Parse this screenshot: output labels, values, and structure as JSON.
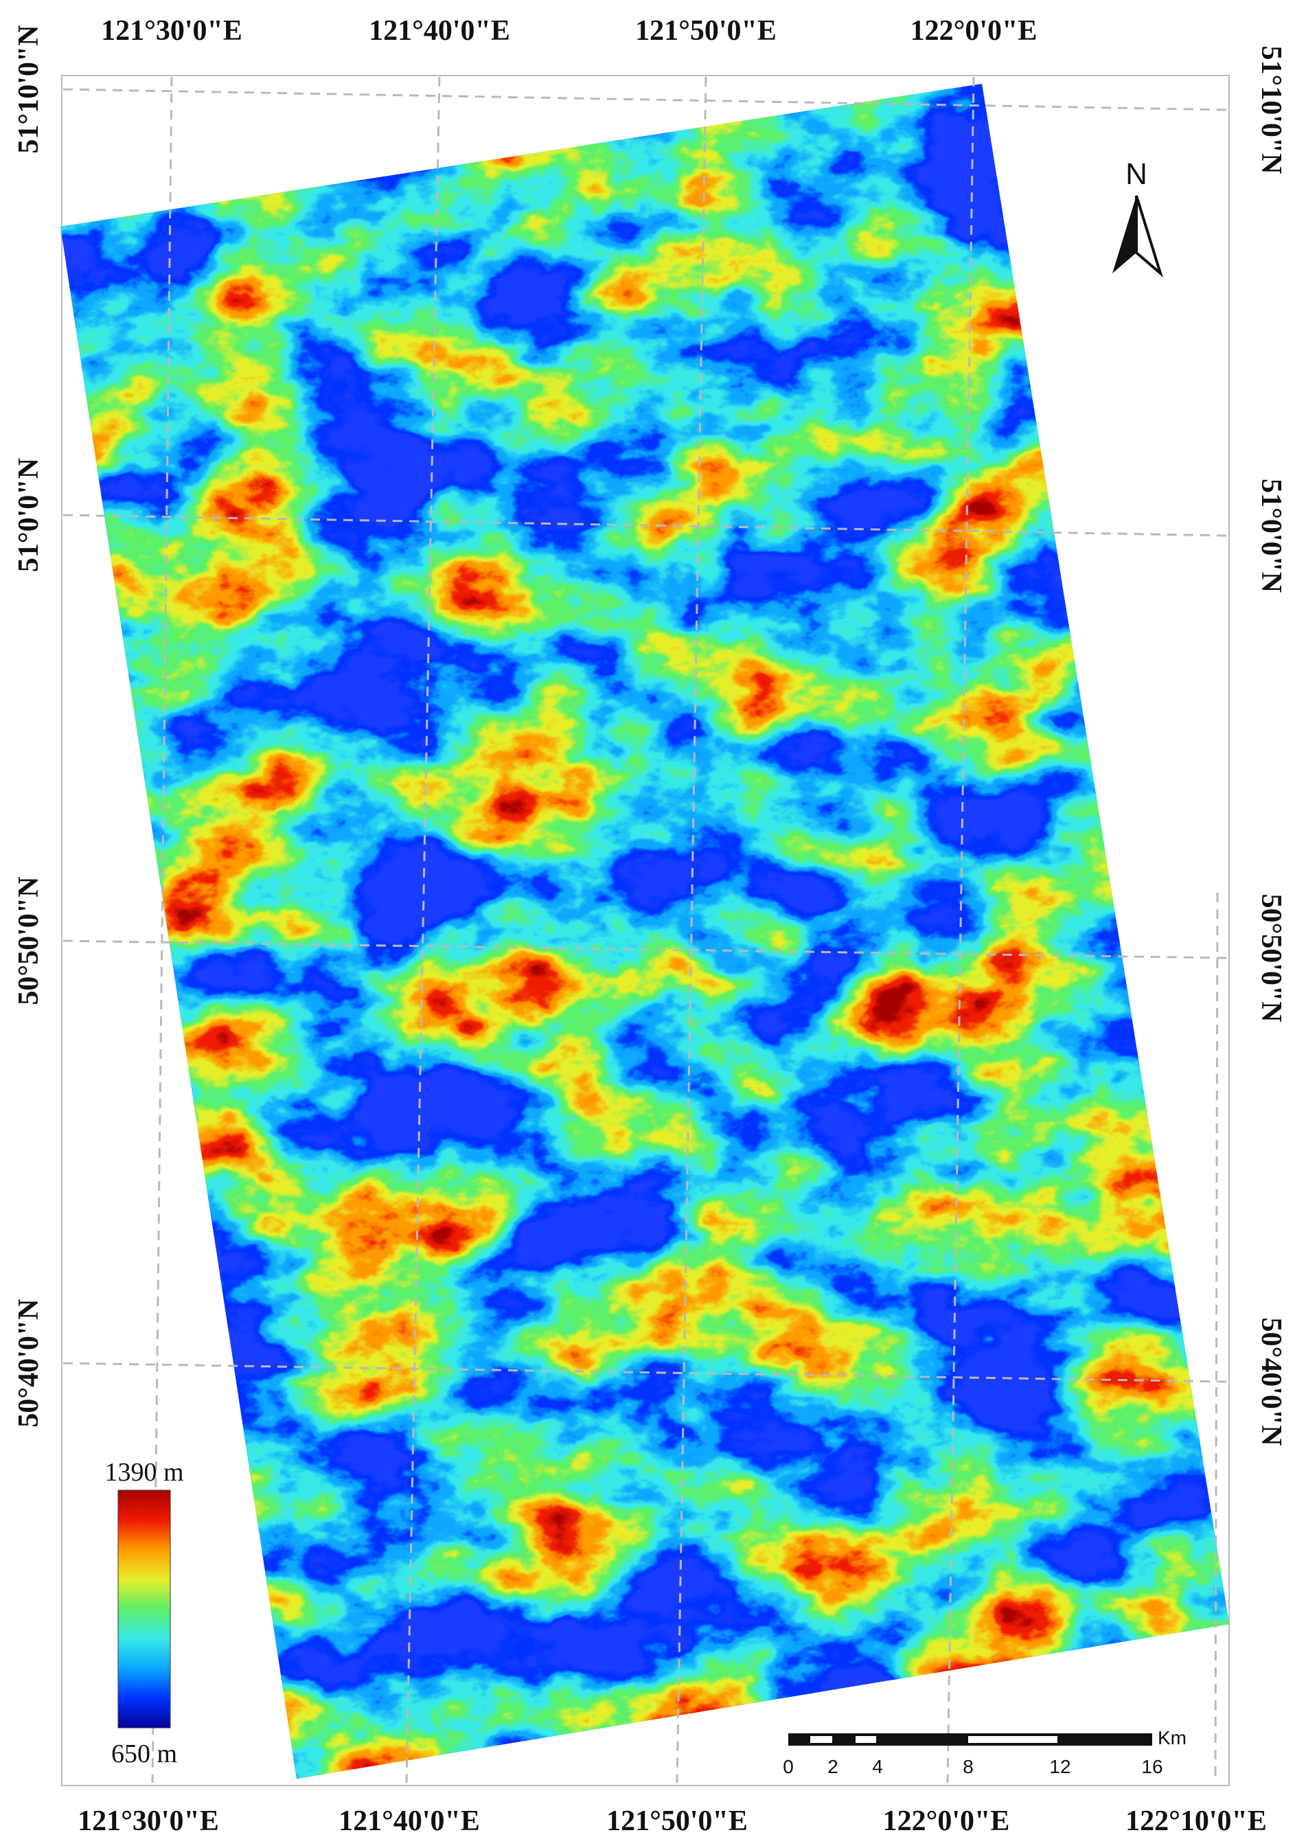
{
  "map": {
    "top_labels": [
      "121°30'0\"E",
      "121°40'0\"E",
      "121°50'0\"E",
      "122°0'0\"E"
    ],
    "bottom_labels": [
      "121°30'0\"E",
      "121°40'0\"E",
      "121°50'0\"E",
      "122°0'0\"E",
      "122°10'0\"E"
    ],
    "left_labels": [
      "51°10'0\"N",
      "51°0'0\"N",
      "50°50'0\"N",
      "50°40'0\"N"
    ],
    "right_labels": [
      "51°10'0\"N",
      "51°0'0\"N",
      "50°50'0\"N",
      "50°40'0\"N"
    ],
    "north_label": "N",
    "elevation_ramp": [
      "#08009c",
      "#0033ff",
      "#0aa7ff",
      "#37e8e8",
      "#5cf06a",
      "#e6ee2a",
      "#ff9a00",
      "#ee1a00",
      "#a60000"
    ]
  },
  "legend": {
    "max_label": "1390 m",
    "min_label": "650 m"
  },
  "scale_bar": {
    "unit": "Km",
    "ticks": [
      "0",
      "2",
      "4",
      "8",
      "12",
      "16"
    ]
  }
}
